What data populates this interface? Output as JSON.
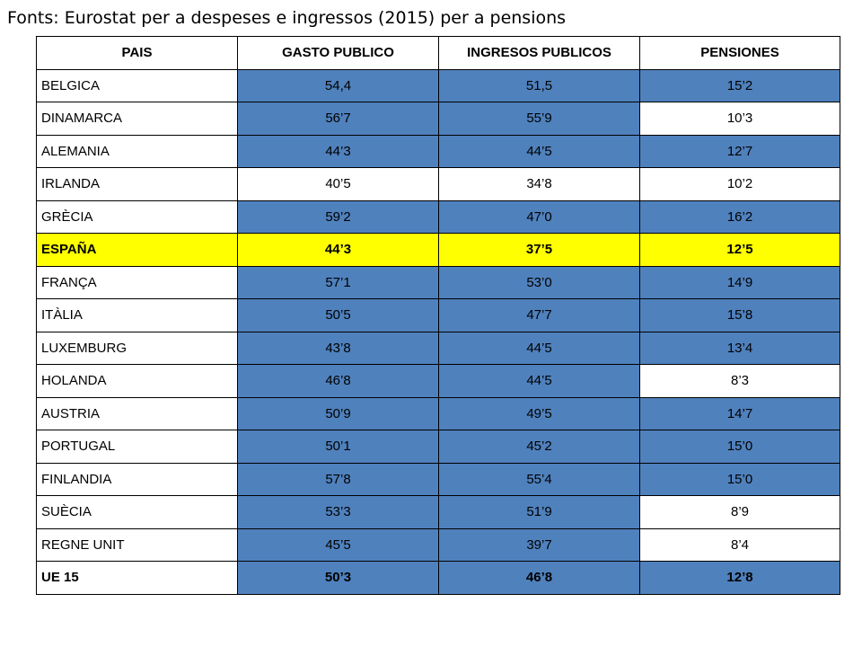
{
  "title": "Fonts: Eurostat per a despeses e ingressos (2015) per a pensions",
  "colors": {
    "blue_cell": "#4f81bd",
    "highlight": "#ffff00",
    "white": "#ffffff",
    "border": "#000000"
  },
  "chart_data": {
    "type": "table",
    "columns": [
      "PAIS",
      "GASTO PUBLICO",
      "INGRESOS PUBLICOS",
      "PENSIONES"
    ],
    "rows": [
      {
        "cells": [
          "BELGICA",
          "54,4",
          "51,5",
          "15’2"
        ],
        "style": "normal",
        "fills": [
          "white",
          "blue",
          "blue",
          "blue"
        ]
      },
      {
        "cells": [
          "DINAMARCA",
          "56’7",
          "55’9",
          "10’3"
        ],
        "style": "normal",
        "fills": [
          "white",
          "blue",
          "blue",
          "white"
        ]
      },
      {
        "cells": [
          "ALEMANIA",
          "44’3",
          "44’5",
          "12’7"
        ],
        "style": "normal",
        "fills": [
          "white",
          "blue",
          "blue",
          "blue"
        ]
      },
      {
        "cells": [
          "IRLANDA",
          "40’5",
          "34’8",
          "10’2"
        ],
        "style": "normal",
        "fills": [
          "white",
          "white",
          "white",
          "white"
        ]
      },
      {
        "cells": [
          "GRÈCIA",
          "59’2",
          "47’0",
          "16’2"
        ],
        "style": "normal",
        "fills": [
          "white",
          "blue",
          "blue",
          "blue"
        ]
      },
      {
        "cells": [
          "ESPAÑA",
          "44’3",
          "37’5",
          "12’5"
        ],
        "style": "highlight",
        "fills": [
          "highlight",
          "highlight",
          "highlight",
          "highlight"
        ]
      },
      {
        "cells": [
          "FRANÇA",
          "57’1",
          "53’0",
          "14’9"
        ],
        "style": "normal",
        "fills": [
          "white",
          "blue",
          "blue",
          "blue"
        ]
      },
      {
        "cells": [
          "ITÀLIA",
          "50’5",
          "47’7",
          "15’8"
        ],
        "style": "normal",
        "fills": [
          "white",
          "blue",
          "blue",
          "blue"
        ]
      },
      {
        "cells": [
          "LUXEMBURG",
          "43’8",
          "44’5",
          "13’4"
        ],
        "style": "normal",
        "fills": [
          "white",
          "blue",
          "blue",
          "blue"
        ]
      },
      {
        "cells": [
          "HOLANDA",
          "46’8",
          "44’5",
          "8’3"
        ],
        "style": "normal",
        "fills": [
          "white",
          "blue",
          "blue",
          "white"
        ]
      },
      {
        "cells": [
          "AUSTRIA",
          "50’9",
          "49’5",
          "14’7"
        ],
        "style": "normal",
        "fills": [
          "white",
          "blue",
          "blue",
          "blue"
        ]
      },
      {
        "cells": [
          "PORTUGAL",
          "50’1",
          "45’2",
          "15’0"
        ],
        "style": "normal",
        "fills": [
          "white",
          "blue",
          "blue",
          "blue"
        ]
      },
      {
        "cells": [
          "FINLANDIA",
          "57’8",
          "55’4",
          "15’0"
        ],
        "style": "normal",
        "fills": [
          "white",
          "blue",
          "blue",
          "blue"
        ]
      },
      {
        "cells": [
          "SUÈCIA",
          "53’3",
          "51’9",
          "8’9"
        ],
        "style": "normal",
        "fills": [
          "white",
          "blue",
          "blue",
          "white"
        ]
      },
      {
        "cells": [
          "REGNE UNIT",
          "45’5",
          "39’7",
          "8’4"
        ],
        "style": "normal",
        "fills": [
          "white",
          "blue",
          "blue",
          "white"
        ]
      },
      {
        "cells": [
          "UE 15",
          "50’3",
          "46’8",
          "12’8"
        ],
        "style": "bold",
        "fills": [
          "white",
          "blue",
          "blue",
          "blue"
        ]
      }
    ]
  }
}
